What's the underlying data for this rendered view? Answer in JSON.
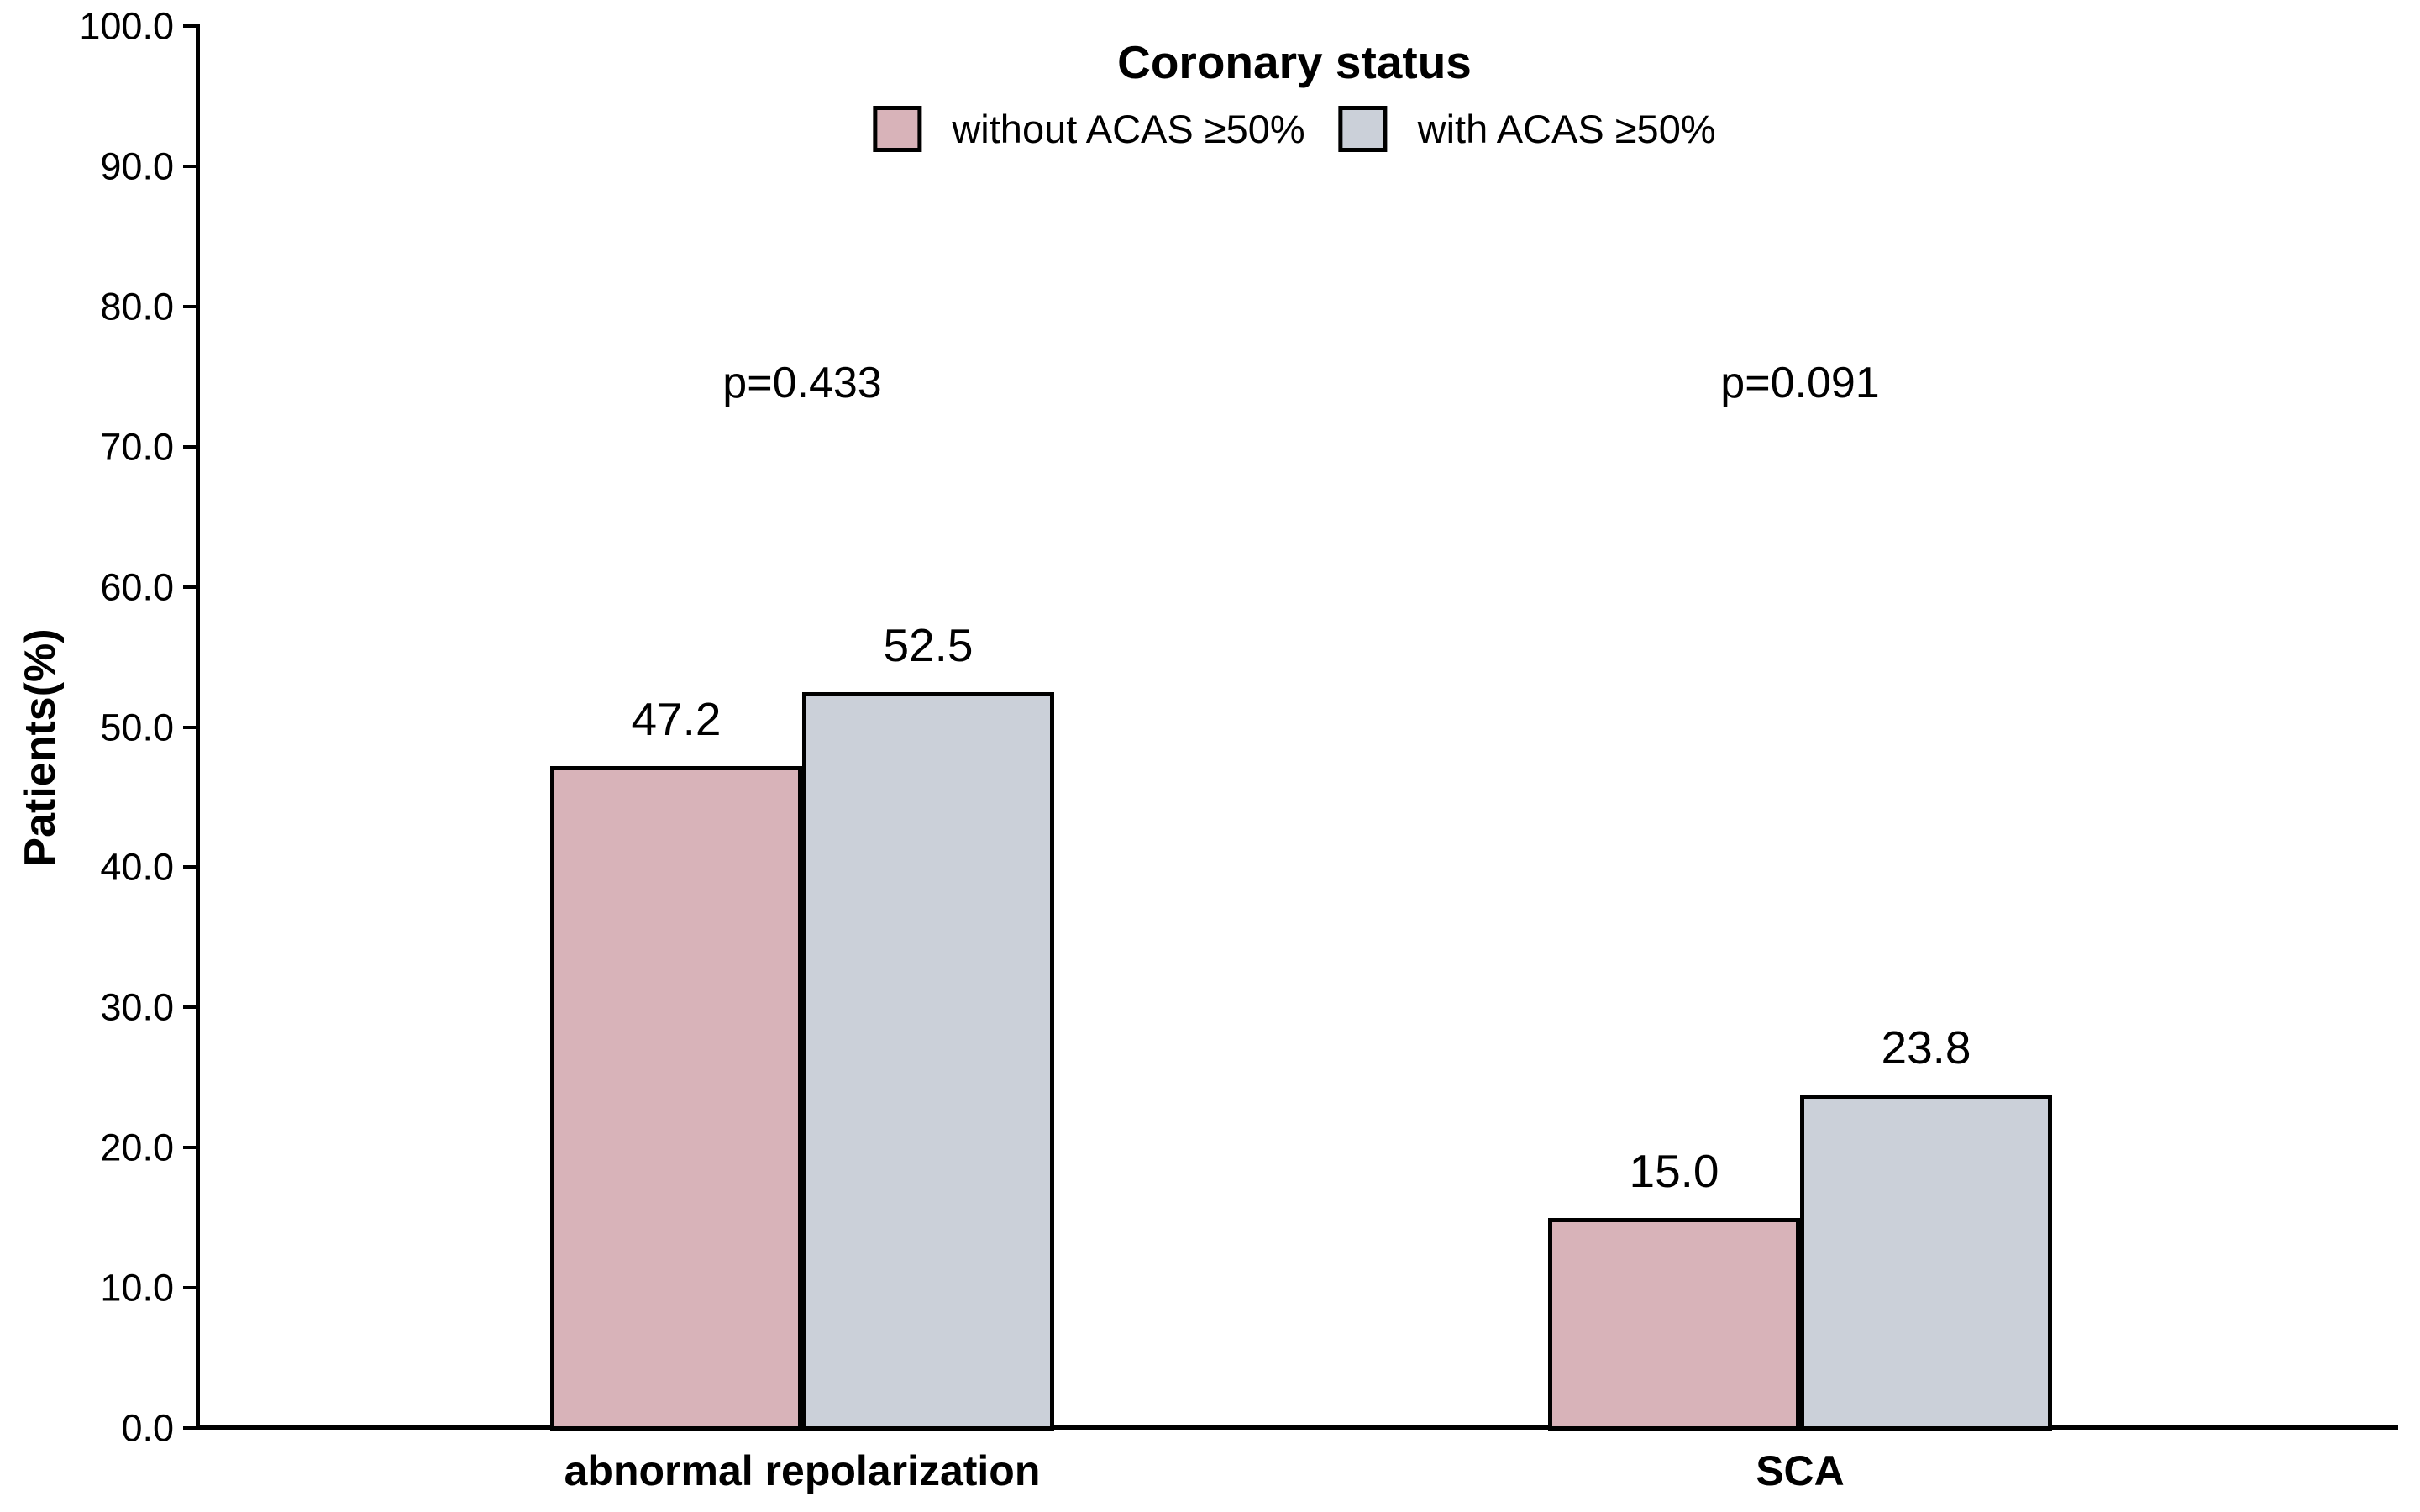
{
  "chart_data": {
    "type": "bar",
    "categories": [
      "abnormal repolarization",
      "SCA"
    ],
    "series": [
      {
        "name": "without ACAS ≥50%",
        "color": "#d8b3b9",
        "values": [
          47.2,
          15.0
        ]
      },
      {
        "name": "with ACAS ≥50%",
        "color": "#cbd0d9",
        "values": [
          52.5,
          23.8
        ]
      }
    ],
    "value_labels": [
      [
        "47.2",
        "15.0"
      ],
      [
        "52.5",
        "23.8"
      ]
    ],
    "annotations": [
      {
        "text": "p=0.433",
        "category": "abnormal repolarization"
      },
      {
        "text": "p=0.091",
        "category": "SCA"
      }
    ],
    "legend_title": "Coronary status",
    "legend_position": "top-center",
    "xlabel": "",
    "ylabel": "Patients(%)",
    "ylim": [
      0,
      100
    ],
    "ytick_labels": [
      "0.0",
      "10.0",
      "20.0",
      "30.0",
      "40.0",
      "50.0",
      "60.0",
      "70.0",
      "80.0",
      "90.0",
      "100.0"
    ],
    "grid": false,
    "bar_border_color": "#000000",
    "axis_color": "#000000",
    "text_color": "#000000"
  }
}
